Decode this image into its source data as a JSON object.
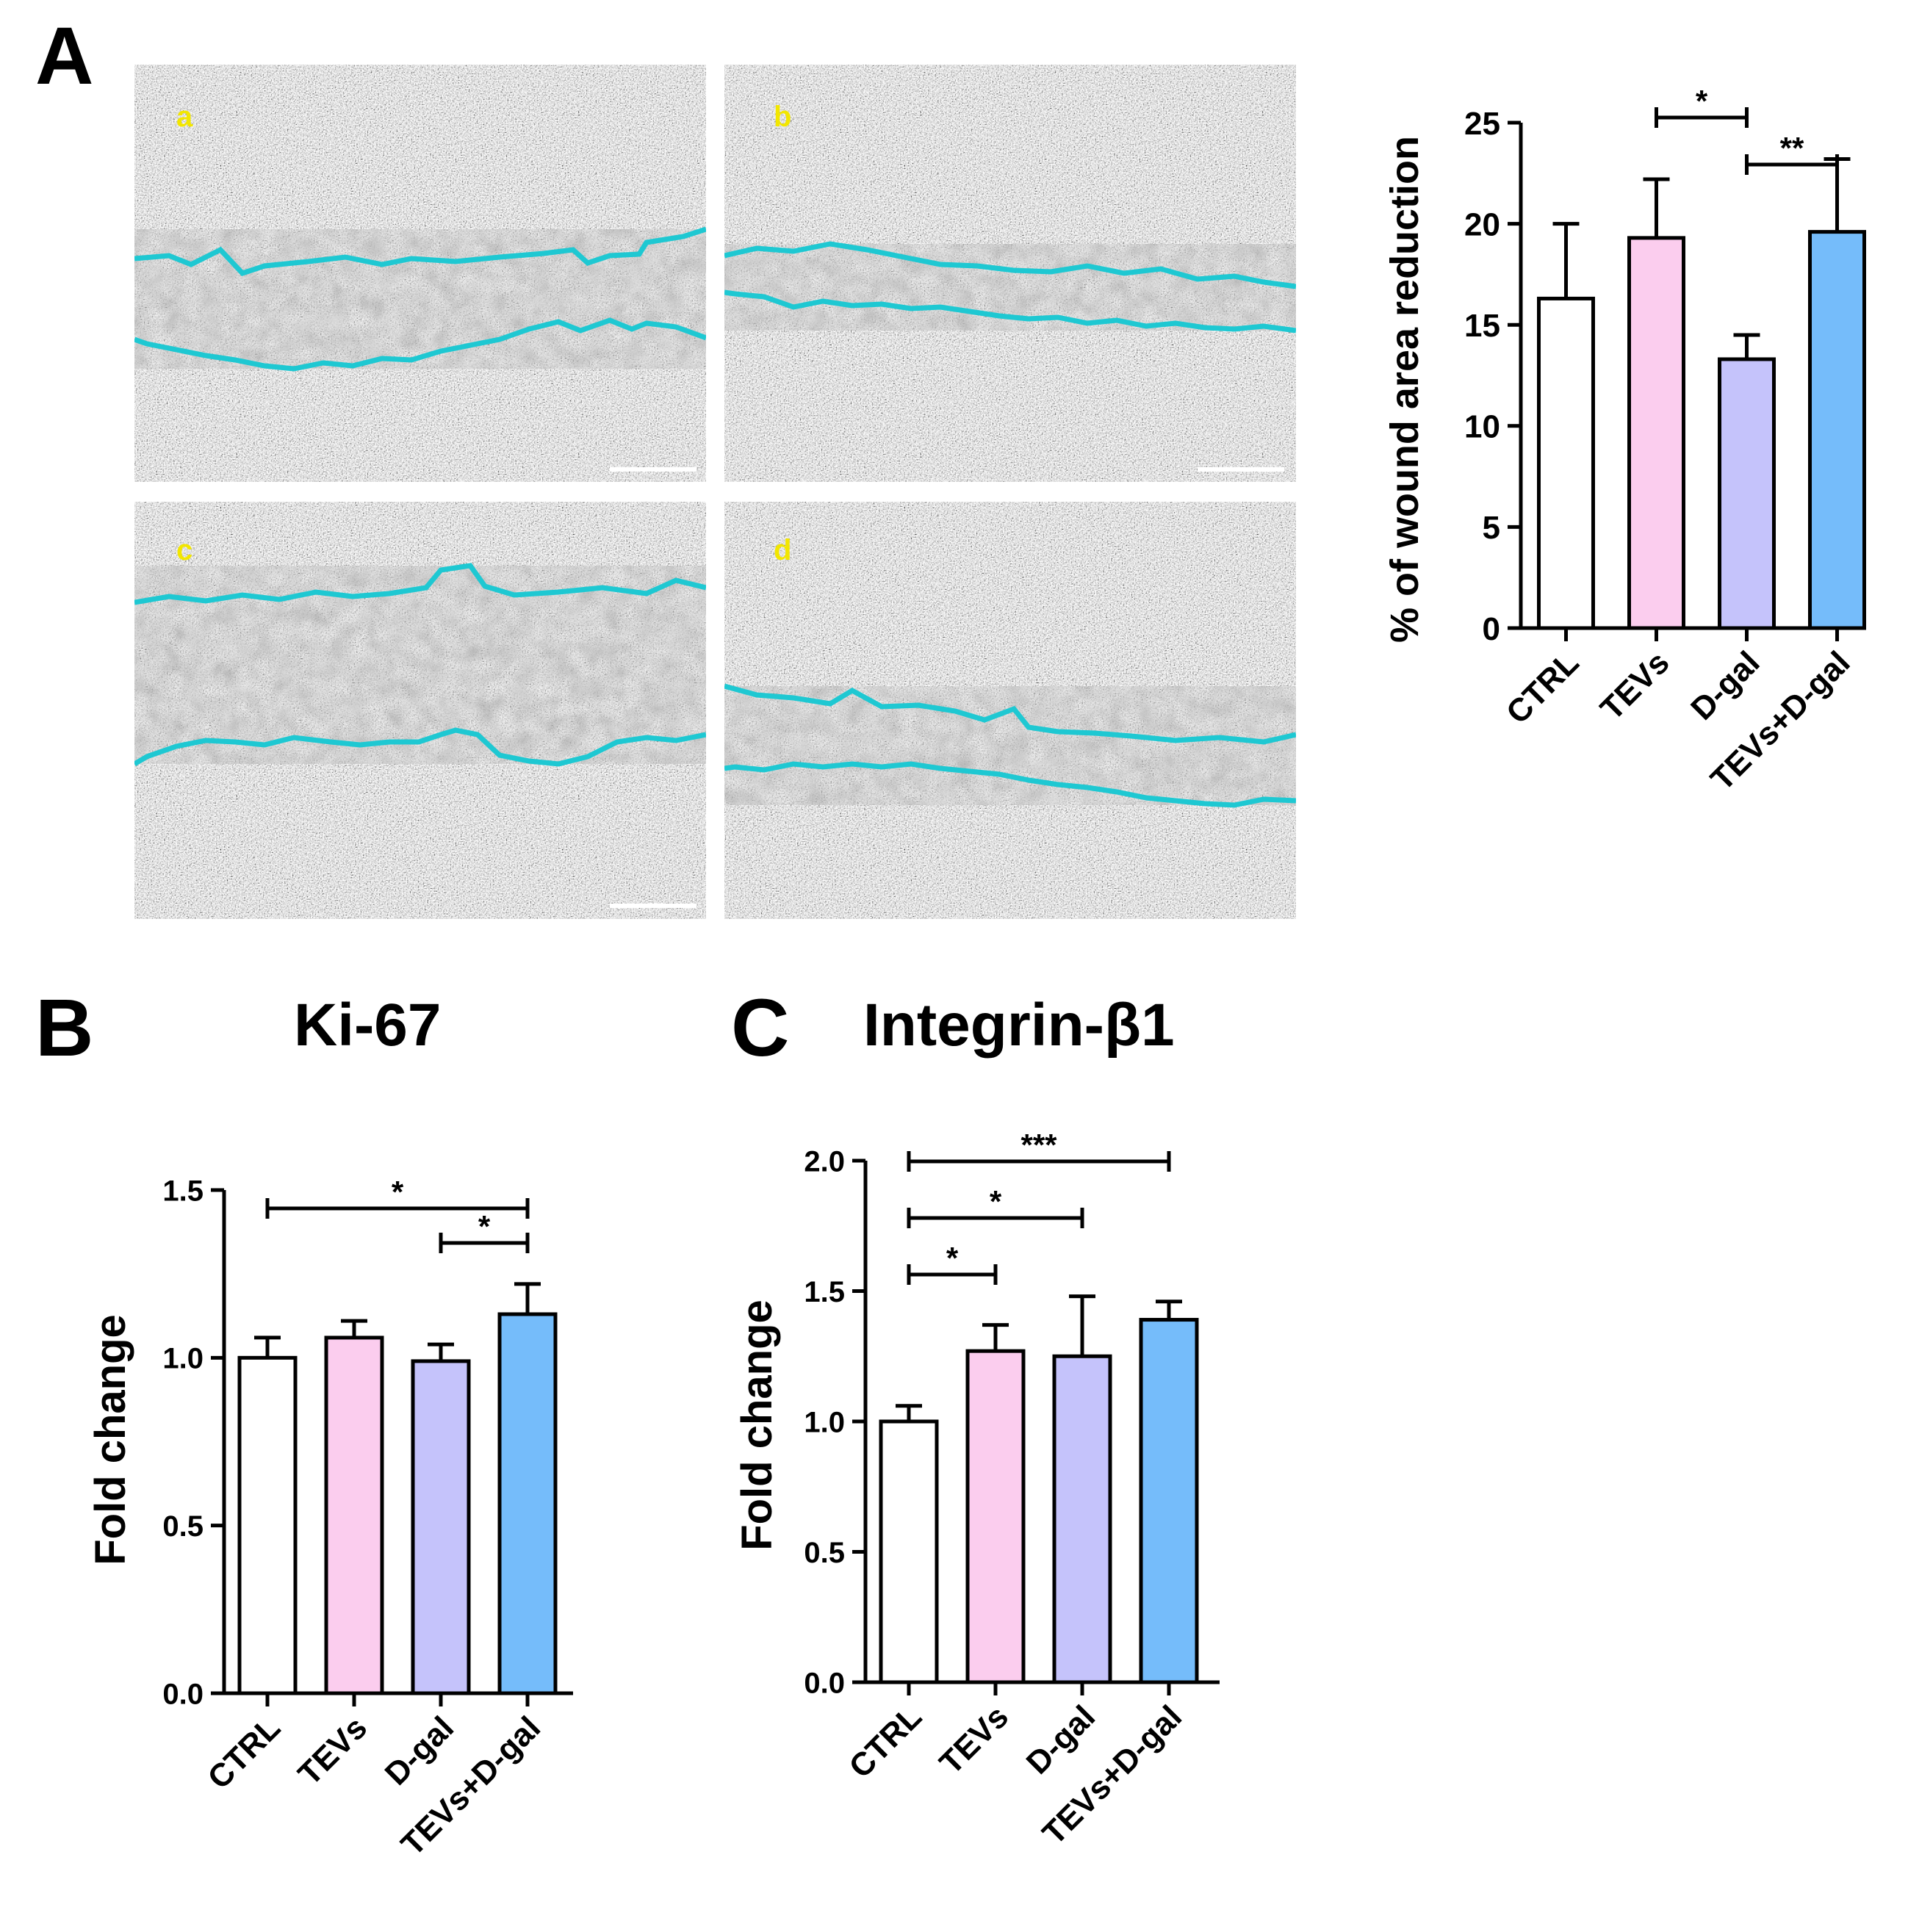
{
  "panels": {
    "A": {
      "letter": "A"
    },
    "B": {
      "letter": "B",
      "title": "Ki-67"
    },
    "C": {
      "letter": "C",
      "title": "Integrin-β1"
    }
  },
  "micrographs": [
    {
      "label": "a"
    },
    {
      "label": "b"
    },
    {
      "label": "c"
    },
    {
      "label": "d"
    }
  ],
  "colors": {
    "CTRL": "#ffffff",
    "TEVs": "#fbcdee",
    "D-gal": "#c5c3fb",
    "TEVs+D-gal": "#75bcfa",
    "wound_edge": "#1ec8d2",
    "label_yellow": "#f2e600"
  },
  "chart_data": [
    {
      "id": "A",
      "type": "bar",
      "title": "",
      "xlabel": "",
      "ylabel": "% of wound area reduction",
      "categories": [
        "CTRL",
        "TEVs",
        "D-gal",
        "TEVs+D-gal"
      ],
      "values": [
        16.3,
        19.3,
        13.3,
        19.6
      ],
      "errors": [
        3.7,
        2.9,
        1.2,
        3.6
      ],
      "ylim": [
        0,
        25
      ],
      "yticks": [
        0,
        5,
        10,
        15,
        20,
        25
      ],
      "ytick_labels": [
        "0",
        "5",
        "10",
        "15",
        "20",
        "25"
      ],
      "significance": [
        {
          "from": 1,
          "to": 2,
          "label": "*"
        },
        {
          "from": 2,
          "to": 3,
          "label": "**"
        }
      ]
    },
    {
      "id": "B",
      "type": "bar",
      "title": "Ki-67",
      "xlabel": "",
      "ylabel": "Fold change",
      "categories": [
        "CTRL",
        "TEVs",
        "D-gal",
        "TEVs+D-gal"
      ],
      "values": [
        1.0,
        1.06,
        0.99,
        1.13
      ],
      "errors": [
        0.06,
        0.05,
        0.05,
        0.09
      ],
      "ylim": [
        0,
        1.5
      ],
      "yticks": [
        0,
        0.5,
        1.0,
        1.5
      ],
      "ytick_labels": [
        "0.0",
        "0.5",
        "1.0",
        "1.5"
      ],
      "significance": [
        {
          "from": 0,
          "to": 3,
          "label": "*"
        },
        {
          "from": 2,
          "to": 3,
          "label": "*"
        }
      ]
    },
    {
      "id": "C",
      "type": "bar",
      "title": "Integrin-β1",
      "xlabel": "",
      "ylabel": "Fold change",
      "categories": [
        "CTRL",
        "TEVs",
        "D-gal",
        "TEVs+D-gal"
      ],
      "values": [
        1.0,
        1.27,
        1.25,
        1.39
      ],
      "errors": [
        0.06,
        0.1,
        0.23,
        0.07
      ],
      "ylim": [
        0,
        2.0
      ],
      "yticks": [
        0,
        0.5,
        1.0,
        1.5,
        2.0
      ],
      "ytick_labels": [
        "0.0",
        "0.5",
        "1.0",
        "1.5",
        "2.0"
      ],
      "significance": [
        {
          "from": 0,
          "to": 3,
          "label": "***"
        },
        {
          "from": 0,
          "to": 2,
          "label": "*"
        },
        {
          "from": 0,
          "to": 1,
          "label": "*"
        }
      ]
    }
  ]
}
